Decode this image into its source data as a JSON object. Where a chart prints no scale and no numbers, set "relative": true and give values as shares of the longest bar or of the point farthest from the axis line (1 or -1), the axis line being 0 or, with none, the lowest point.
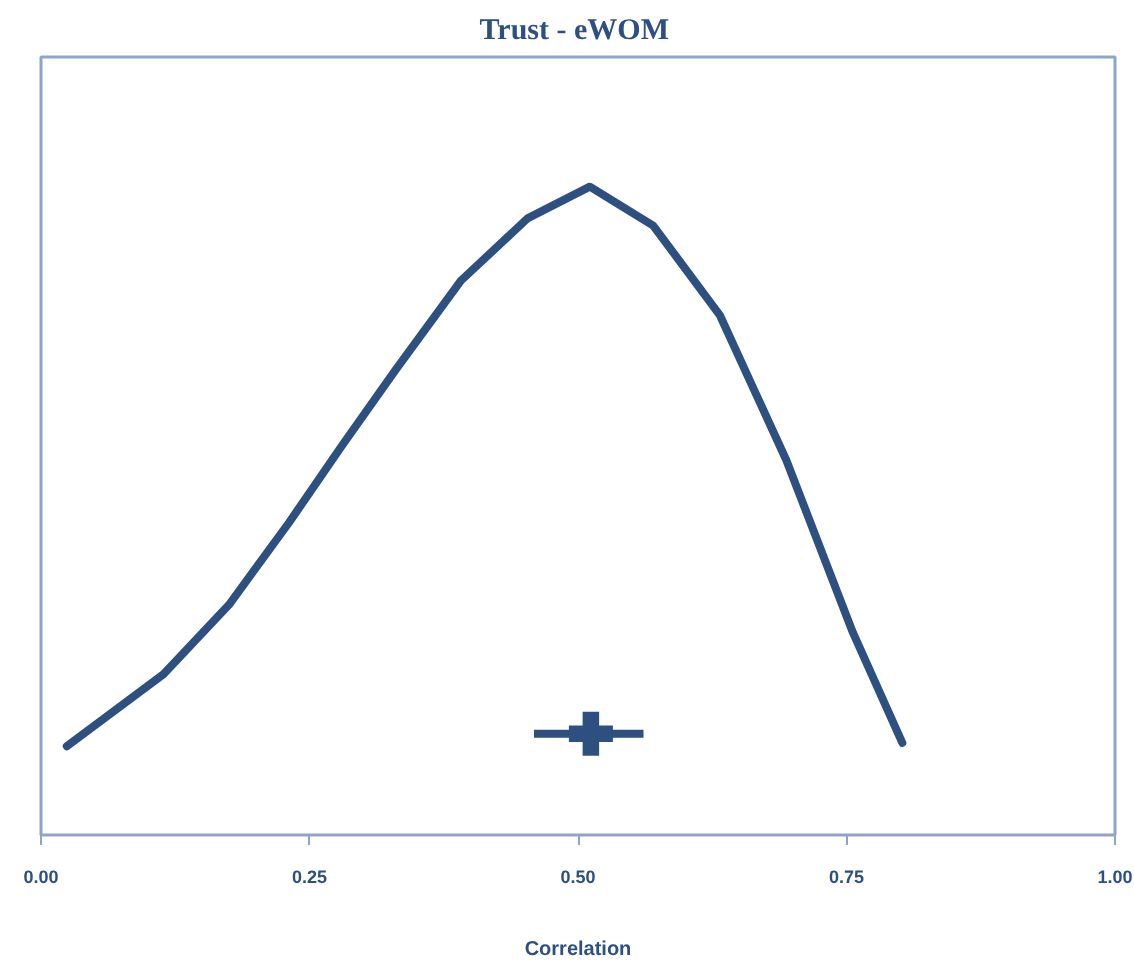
{
  "chart_data": {
    "type": "line",
    "title": "Trust -  eWOM",
    "xlabel": "Correlation",
    "relative": true,
    "xlim": [
      0,
      1
    ],
    "xticks": [
      {
        "value": 0,
        "label": "0.00"
      },
      {
        "value": 0.25,
        "label": "0.25"
      },
      {
        "value": 0.5,
        "label": "0.50"
      },
      {
        "value": 0.75,
        "label": "0.75"
      },
      {
        "value": 1,
        "label": "1.00"
      }
    ],
    "tick_labels": "x",
    "grid": false,
    "line_style": "solid",
    "marker": "none",
    "series": [
      {
        "color": "#2e5080",
        "x": [
          0.024,
          0.114,
          0.175,
          0.231,
          0.28,
          0.33,
          0.391,
          0.453,
          0.511,
          0.57,
          0.632,
          0.694,
          0.756,
          0.802
        ],
        "values": [
          0.137,
          0.248,
          0.355,
          0.482,
          0.6,
          0.717,
          0.855,
          0.951,
          1.0,
          0.94,
          0.802,
          0.578,
          0.312,
          0.142
        ]
      },
      {
        "type": "scatter",
        "marker": "cross",
        "color": "#2e5080",
        "x": [
          0.512
        ],
        "values": [
          0.156
        ],
        "xerrors": [
          [
            0.459,
            0.561
          ]
        ]
      }
    ]
  }
}
